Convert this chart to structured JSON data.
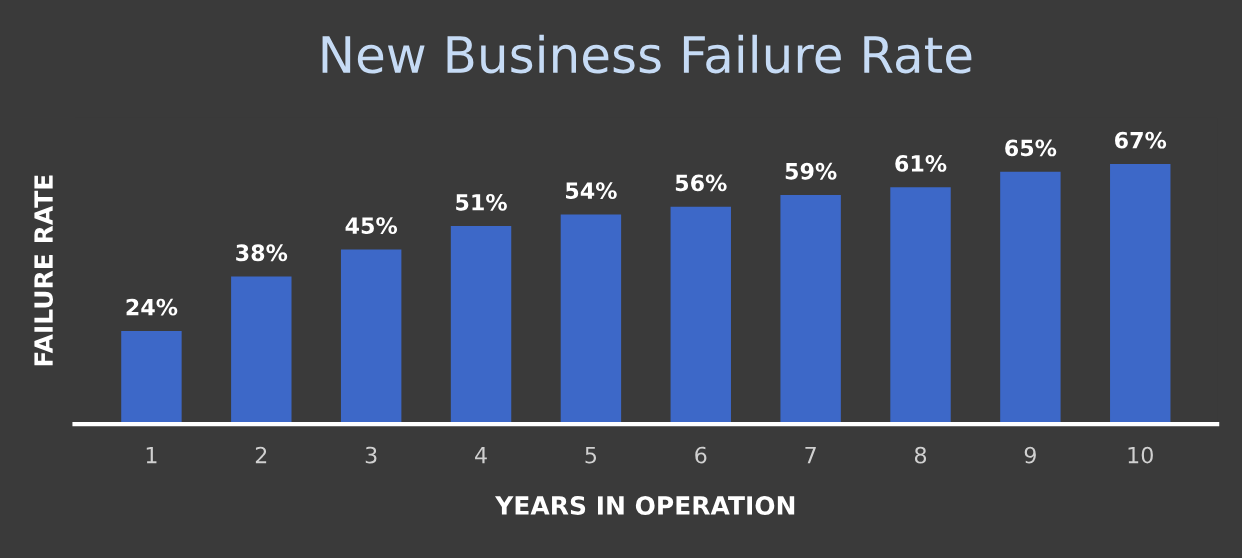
{
  "chart_data": {
    "type": "bar",
    "title": "New Business Failure Rate",
    "xlabel": "YEARS IN OPERATION",
    "ylabel": "FAILURE RATE",
    "categories": [
      "1",
      "2",
      "3",
      "4",
      "5",
      "6",
      "7",
      "8",
      "9",
      "10"
    ],
    "values": [
      24,
      38,
      45,
      51,
      54,
      56,
      59,
      61,
      65,
      67
    ],
    "value_labels": [
      "24%",
      "38%",
      "45%",
      "51%",
      "54%",
      "56%",
      "59%",
      "61%",
      "65%",
      "67%"
    ],
    "color": "#3d68c8",
    "grid": false,
    "legend": false
  }
}
